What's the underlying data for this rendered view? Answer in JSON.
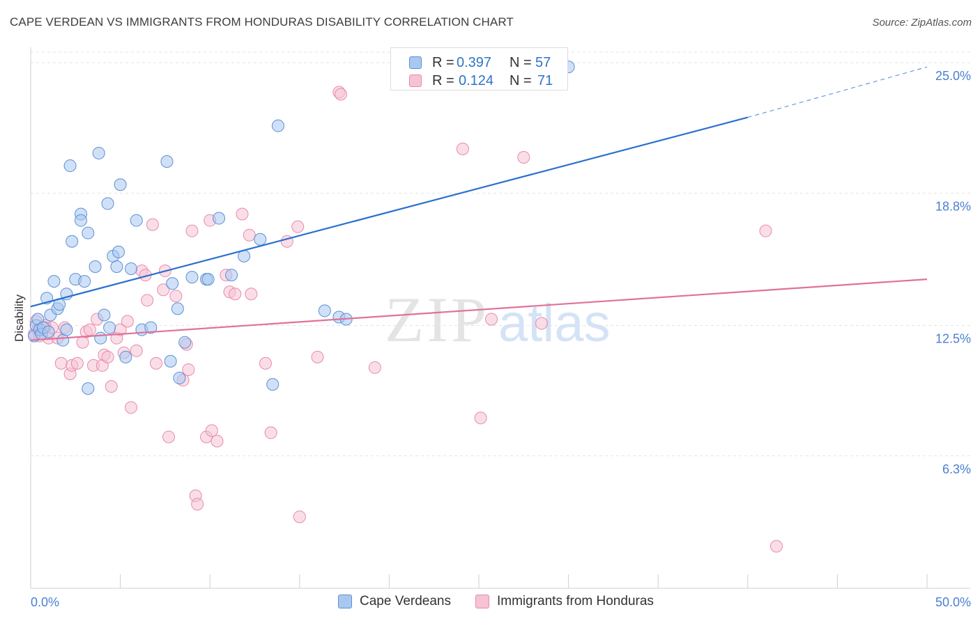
{
  "title": "CAPE VERDEAN VS IMMIGRANTS FROM HONDURAS DISABILITY CORRELATION CHART",
  "source": "Source: ZipAtlas.com",
  "watermark": {
    "zip": "ZIP",
    "atlas": "atlas"
  },
  "legend_stats": [
    {
      "r_label": "R =",
      "r_value": "0.397",
      "n_label": "N =",
      "n_value": "57"
    },
    {
      "r_label": "R =",
      "r_value": "0.124",
      "n_label": "N =",
      "n_value": "71"
    }
  ],
  "colors": {
    "blue_fill": "#a9c8f0",
    "blue_stroke": "#5b8fd6",
    "blue_line": "#2a6fcf",
    "pink_fill": "#f6c3d4",
    "pink_stroke": "#e88aab",
    "pink_line": "#e0719a",
    "tick_label": "#4a7fd0",
    "grid": "#e3e3e3"
  },
  "chart_data": {
    "type": "scatter",
    "title": "CAPE VERDEAN VS IMMIGRANTS FROM HONDURAS DISABILITY CORRELATION CHART",
    "xlabel": "",
    "ylabel": "Disability",
    "xlim": [
      0,
      50
    ],
    "ylim": [
      0,
      25.5
    ],
    "x_ticks": [
      "0.0%",
      "50.0%"
    ],
    "y_ticks": [
      {
        "value": 6.3,
        "label": "6.3%"
      },
      {
        "value": 12.5,
        "label": "12.5%"
      },
      {
        "value": 18.8,
        "label": "18.8%"
      },
      {
        "value": 25.0,
        "label": "25.0%"
      }
    ],
    "grid": true,
    "legend_position": "bottom",
    "series": [
      {
        "name": "Cape Verdeans",
        "color": "#5b8fd6",
        "trend": {
          "x": [
            0,
            40,
            50
          ],
          "y": [
            13.4,
            22.4,
            24.8
          ],
          "dashed_from": 40
        },
        "points": [
          [
            0.2,
            12.0
          ],
          [
            0.3,
            12.5
          ],
          [
            0.4,
            12.8
          ],
          [
            0.5,
            12.3
          ],
          [
            0.6,
            12.1
          ],
          [
            0.7,
            12.4
          ],
          [
            0.9,
            13.8
          ],
          [
            1.0,
            12.2
          ],
          [
            1.1,
            13.0
          ],
          [
            1.3,
            14.6
          ],
          [
            1.5,
            13.3
          ],
          [
            1.6,
            13.5
          ],
          [
            1.8,
            11.8
          ],
          [
            2.0,
            12.3
          ],
          [
            2.0,
            14.0
          ],
          [
            2.2,
            20.1
          ],
          [
            2.3,
            16.5
          ],
          [
            2.5,
            14.7
          ],
          [
            2.8,
            17.8
          ],
          [
            2.8,
            17.5
          ],
          [
            3.0,
            14.6
          ],
          [
            3.2,
            9.5
          ],
          [
            3.2,
            16.9
          ],
          [
            3.6,
            15.3
          ],
          [
            3.8,
            20.7
          ],
          [
            3.9,
            11.9
          ],
          [
            4.1,
            13.0
          ],
          [
            4.3,
            18.3
          ],
          [
            4.4,
            12.4
          ],
          [
            4.6,
            15.8
          ],
          [
            4.8,
            15.3
          ],
          [
            4.9,
            16.0
          ],
          [
            5.0,
            19.2
          ],
          [
            5.3,
            11.0
          ],
          [
            5.6,
            15.2
          ],
          [
            5.9,
            17.5
          ],
          [
            6.2,
            12.3
          ],
          [
            6.7,
            12.4
          ],
          [
            7.6,
            20.3
          ],
          [
            7.8,
            10.8
          ],
          [
            7.9,
            14.5
          ],
          [
            8.2,
            13.3
          ],
          [
            8.3,
            10.0
          ],
          [
            8.6,
            11.7
          ],
          [
            9.0,
            14.8
          ],
          [
            9.8,
            14.7
          ],
          [
            9.9,
            14.7
          ],
          [
            10.5,
            17.6
          ],
          [
            11.2,
            14.9
          ],
          [
            11.9,
            15.8
          ],
          [
            12.8,
            16.6
          ],
          [
            13.5,
            9.7
          ],
          [
            13.8,
            22.0
          ],
          [
            16.4,
            13.2
          ],
          [
            17.2,
            12.9
          ],
          [
            17.6,
            12.8
          ],
          [
            30.0,
            24.8
          ]
        ]
      },
      {
        "name": "Immigrants from Honduras",
        "color": "#e88aab",
        "trend": {
          "x": [
            0,
            50
          ],
          "y": [
            11.8,
            14.7
          ]
        },
        "points": [
          [
            0.2,
            12.1
          ],
          [
            0.3,
            12.7
          ],
          [
            0.4,
            12.3
          ],
          [
            0.5,
            12.0
          ],
          [
            0.6,
            12.3
          ],
          [
            0.8,
            12.5
          ],
          [
            1.0,
            11.9
          ],
          [
            1.2,
            12.4
          ],
          [
            1.7,
            10.7
          ],
          [
            1.9,
            12.4
          ],
          [
            2.2,
            10.2
          ],
          [
            2.3,
            10.6
          ],
          [
            2.6,
            10.7
          ],
          [
            2.9,
            11.7
          ],
          [
            3.1,
            12.2
          ],
          [
            3.3,
            12.3
          ],
          [
            3.5,
            10.6
          ],
          [
            3.7,
            12.8
          ],
          [
            4.0,
            10.6
          ],
          [
            4.1,
            11.1
          ],
          [
            4.3,
            11.0
          ],
          [
            4.5,
            9.6
          ],
          [
            4.8,
            11.9
          ],
          [
            5.0,
            12.3
          ],
          [
            5.2,
            11.2
          ],
          [
            5.4,
            12.7
          ],
          [
            5.6,
            8.6
          ],
          [
            5.9,
            11.3
          ],
          [
            6.2,
            15.1
          ],
          [
            6.4,
            14.9
          ],
          [
            6.5,
            13.7
          ],
          [
            6.8,
            17.3
          ],
          [
            7.0,
            10.7
          ],
          [
            7.4,
            14.2
          ],
          [
            7.5,
            15.1
          ],
          [
            7.7,
            7.2
          ],
          [
            8.1,
            13.9
          ],
          [
            8.5,
            9.9
          ],
          [
            8.7,
            11.6
          ],
          [
            8.8,
            10.4
          ],
          [
            9.0,
            17.0
          ],
          [
            9.2,
            4.4
          ],
          [
            9.3,
            4.0
          ],
          [
            9.8,
            7.2
          ],
          [
            10.0,
            17.5
          ],
          [
            10.1,
            7.5
          ],
          [
            10.4,
            7.0
          ],
          [
            10.9,
            14.9
          ],
          [
            11.1,
            14.1
          ],
          [
            11.4,
            14.0
          ],
          [
            11.8,
            17.8
          ],
          [
            12.2,
            16.8
          ],
          [
            12.3,
            14.0
          ],
          [
            13.1,
            10.7
          ],
          [
            13.4,
            7.4
          ],
          [
            14.3,
            16.5
          ],
          [
            14.9,
            17.2
          ],
          [
            15.0,
            3.4
          ],
          [
            16.0,
            11.0
          ],
          [
            17.2,
            23.6
          ],
          [
            17.3,
            23.5
          ],
          [
            19.2,
            10.5
          ],
          [
            24.1,
            20.9
          ],
          [
            25.1,
            8.1
          ],
          [
            25.7,
            12.8
          ],
          [
            27.5,
            20.5
          ],
          [
            28.5,
            12.6
          ],
          [
            41.0,
            17.0
          ],
          [
            41.6,
            2.0
          ],
          [
            0.8,
            12.4
          ],
          [
            1.5,
            11.9
          ]
        ]
      }
    ]
  },
  "bottom_legend": [
    {
      "label": "Cape Verdeans"
    },
    {
      "label": "Immigrants from Honduras"
    }
  ]
}
